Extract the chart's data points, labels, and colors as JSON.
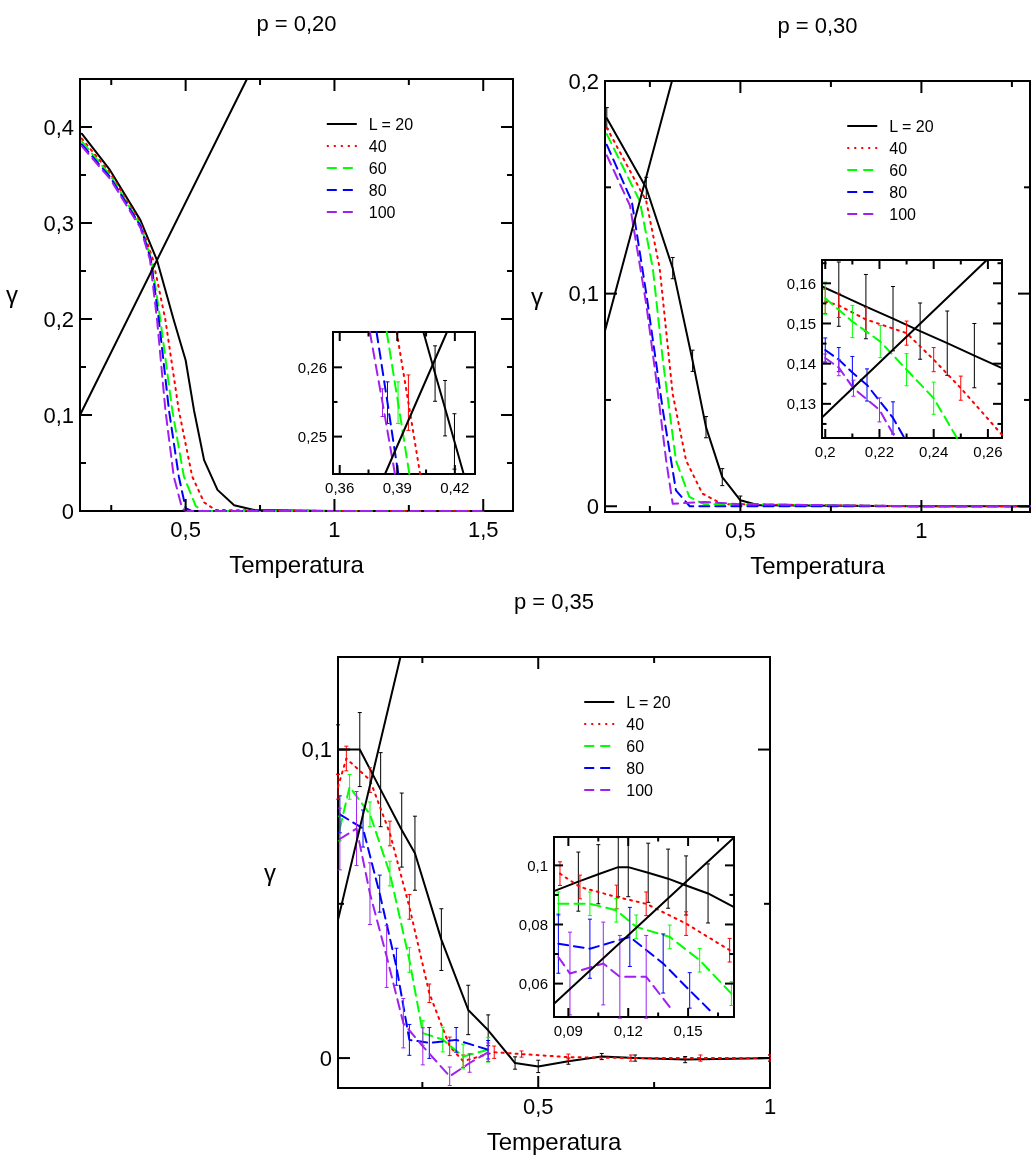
{
  "chart_data": [
    {
      "type": "line",
      "title": "p = 0,20",
      "xlabel": "Temperatura",
      "ylabel": "γ",
      "xlim": [
        0.145,
        1.6
      ],
      "ylim": [
        0,
        0.45
      ],
      "xticks": [
        {
          "value": 0.25,
          "label": null
        },
        {
          "value": 0.5,
          "label": "0,5"
        },
        {
          "value": 0.75,
          "label": null
        },
        {
          "value": 1,
          "label": "1"
        },
        {
          "value": 1.25,
          "label": null
        },
        {
          "value": 1.5,
          "label": "1,5"
        }
      ],
      "yticks": [
        {
          "value": 0,
          "label": "0"
        },
        {
          "value": 0.05,
          "label": null
        },
        {
          "value": 0.1,
          "label": "0,1"
        },
        {
          "value": 0.15,
          "label": null
        },
        {
          "value": 0.2,
          "label": "0,2"
        },
        {
          "value": 0.25,
          "label": null
        },
        {
          "value": 0.3,
          "label": "0,3"
        },
        {
          "value": 0.35,
          "label": null
        },
        {
          "value": 0.4,
          "label": "0,4"
        }
      ],
      "legend": "top right",
      "marker": "none",
      "grid": false,
      "series": [
        {
          "name": "L = 20",
          "color": "#000000",
          "line_style": "solid",
          "x": [
            0.151,
            0.246,
            0.348,
            0.404,
            0.46,
            0.5,
            0.528,
            0.562,
            0.607,
            0.663,
            0.73,
            1.0,
            1.5
          ],
          "values": [
            0.393,
            0.355,
            0.303,
            0.261,
            0.199,
            0.157,
            0.105,
            0.053,
            0.022,
            0.006,
            0.001,
            0,
            0
          ]
        },
        {
          "name": "40",
          "color": "#ff0000",
          "line_style": "dotted",
          "x": [
            0.151,
            0.246,
            0.348,
            0.39,
            0.432,
            0.477,
            0.522,
            0.562,
            0.6,
            1.0,
            1.5
          ],
          "values": [
            0.388,
            0.352,
            0.3,
            0.262,
            0.199,
            0.105,
            0.036,
            0.009,
            0.001,
            0,
            0
          ]
        },
        {
          "name": "60",
          "color": "#00ff00",
          "line_style": "dashed",
          "x": [
            0.151,
            0.246,
            0.348,
            0.385,
            0.415,
            0.455,
            0.494,
            0.534,
            0.56,
            1.0,
            1.5
          ],
          "values": [
            0.385,
            0.35,
            0.298,
            0.262,
            0.199,
            0.105,
            0.036,
            0.005,
            0,
            0,
            0
          ]
        },
        {
          "name": "80",
          "color": "#0000ff",
          "line_style": "dashed",
          "x": [
            0.151,
            0.246,
            0.348,
            0.383,
            0.41,
            0.444,
            0.477,
            0.5,
            0.52,
            1.0,
            1.5
          ],
          "values": [
            0.382,
            0.348,
            0.297,
            0.262,
            0.199,
            0.105,
            0.036,
            0.003,
            0,
            0,
            0
          ]
        },
        {
          "name": "100",
          "color": "#a020f0",
          "line_style": "dashed",
          "x": [
            0.151,
            0.246,
            0.348,
            0.38,
            0.404,
            0.432,
            0.46,
            0.488,
            0.5,
            1.0,
            1.5
          ],
          "values": [
            0.38,
            0.346,
            0.295,
            0.262,
            0.199,
            0.105,
            0.036,
            0.003,
            0,
            0,
            0
          ]
        },
        {
          "type": "line",
          "color": "#000000",
          "line_style": "solid",
          "x": [
            0.145,
            0.706
          ],
          "values": [
            0.1,
            0.45
          ]
        }
      ]
    },
    {
      "type": "line",
      "xlim": [
        0.3565,
        0.4305
      ],
      "ylim": [
        0.2446,
        0.2651
      ],
      "xticks": [
        {
          "value": 0.36,
          "label": "0,36"
        },
        {
          "value": 0.375,
          "label": null
        },
        {
          "value": 0.39,
          "label": "0,39"
        },
        {
          "value": 0.405,
          "label": null
        },
        {
          "value": 0.42,
          "label": "0,42"
        }
      ],
      "yticks": [
        {
          "value": 0.25,
          "label": "0,25"
        },
        {
          "value": 0.255,
          "label": null
        },
        {
          "value": 0.26,
          "label": "0,26"
        }
      ],
      "marker": "none",
      "grid": false,
      "series": [
        {
          "color": "#000000",
          "line_style": "solid",
          "x": [
            0.4036,
            0.4097,
            0.4149,
            0.4198,
            0.4246
          ],
          "values": [
            0.2651,
            0.2591,
            0.2541,
            0.2493,
            0.2446
          ],
          "errors": [
            null,
            0.004,
            0.004,
            0.004,
            null
          ]
        },
        {
          "color": "#ff0000",
          "line_style": "dotted",
          "x": [
            0.3897,
            0.3958,
            0.4019
          ],
          "values": [
            0.2651,
            0.2549,
            0.2446
          ],
          "errors": [
            null,
            0.004,
            null
          ]
        },
        {
          "color": "#00ff00",
          "line_style": "dashed",
          "x": [
            0.3845,
            0.3904,
            0.3963
          ],
          "values": [
            0.2651,
            0.2549,
            0.2446
          ],
          "errors": [
            null,
            0.003,
            null
          ]
        },
        {
          "color": "#0000ff",
          "line_style": "dashed",
          "x": [
            0.3792,
            0.3849,
            0.3905
          ],
          "values": [
            0.2651,
            0.2549,
            0.2446
          ],
          "errors": [
            null,
            0.003,
            null
          ]
        },
        {
          "color": "#a020f0",
          "line_style": "dashed",
          "x": [
            0.3757,
            0.3823,
            0.3888
          ],
          "values": [
            0.2651,
            0.2549,
            0.2446
          ],
          "errors": [
            null,
            0.002,
            null
          ]
        },
        {
          "color": "#000000",
          "line_style": "solid",
          "x": [
            0.3836,
            0.4159
          ],
          "values": [
            0.2446,
            0.2651
          ]
        }
      ]
    },
    {
      "type": "line",
      "title": "p = 0,30",
      "xlabel": "Temperatura",
      "ylabel": "γ",
      "xlim": [
        0.126,
        1.3
      ],
      "ylim": [
        -0.0027,
        0.2
      ],
      "xticks": [
        {
          "value": 0.25,
          "label": null
        },
        {
          "value": 0.5,
          "label": "0,5"
        },
        {
          "value": 0.75,
          "label": null
        },
        {
          "value": 1,
          "label": "1"
        },
        {
          "value": 1.25,
          "label": null
        }
      ],
      "yticks": [
        {
          "value": 0,
          "label": "0"
        },
        {
          "value": 0.05,
          "label": null
        },
        {
          "value": 0.1,
          "label": "0,1"
        },
        {
          "value": 0.15,
          "label": null
        },
        {
          "value": 0.2,
          "label": "0,2"
        }
      ],
      "legend": "top right",
      "marker": "none",
      "grid": false,
      "series": [
        {
          "name": "L = 20",
          "color": "#000000",
          "line_style": "solid",
          "x": [
            0.131,
            0.24,
            0.313,
            0.368,
            0.405,
            0.45,
            0.5,
            0.55,
            1.0,
            1.3
          ],
          "values": [
            0.1825,
            0.1497,
            0.112,
            0.0684,
            0.0372,
            0.0137,
            0.0028,
            0.0005,
            0,
            0
          ],
          "errors": [
            0.005,
            0.005,
            0.005,
            0.005,
            0.005,
            0.004,
            0.002,
            null,
            null,
            null
          ]
        },
        {
          "name": "40",
          "color": "#ff0000",
          "line_style": "dotted",
          "x": [
            0.131,
            0.24,
            0.277,
            0.313,
            0.35,
            0.395,
            0.45,
            1.0,
            1.3
          ],
          "values": [
            0.178,
            0.1435,
            0.112,
            0.0528,
            0.0215,
            0.006,
            0.001,
            0,
            0
          ]
        },
        {
          "name": "60",
          "color": "#00ff00",
          "line_style": "dashed",
          "x": [
            0.131,
            0.222,
            0.258,
            0.286,
            0.322,
            0.359,
            0.4,
            1.0,
            1.3
          ],
          "values": [
            0.175,
            0.1435,
            0.112,
            0.0684,
            0.0215,
            0.0044,
            0.001,
            0,
            0
          ]
        },
        {
          "name": "80",
          "color": "#0000ff",
          "line_style": "dashed",
          "x": [
            0.131,
            0.2,
            0.24,
            0.286,
            0.322,
            0.36,
            1.0,
            1.3
          ],
          "values": [
            0.17,
            0.1434,
            0.1,
            0.045,
            0.0075,
            0,
            0,
            0
          ]
        },
        {
          "name": "100",
          "color": "#a020f0",
          "line_style": "dashed",
          "x": [
            0.131,
            0.195,
            0.24,
            0.268,
            0.295,
            0.313,
            0.4,
            0.5,
            1.0,
            1.3
          ],
          "values": [
            0.165,
            0.1414,
            0.095,
            0.059,
            0.0215,
            0.0012,
            0.002,
            0.001,
            0,
            0
          ]
        },
        {
          "type": "line",
          "color": "#000000",
          "line_style": "solid",
          "x": [
            0.126,
            0.311
          ],
          "values": [
            0.0825,
            0.2
          ]
        }
      ]
    },
    {
      "type": "line",
      "xlim": [
        0.1988,
        0.2652
      ],
      "ylim": [
        0.1215,
        0.1658
      ],
      "xticks": [
        {
          "value": 0.2,
          "label": "0,2"
        },
        {
          "value": 0.21,
          "label": null
        },
        {
          "value": 0.22,
          "label": "0,22"
        },
        {
          "value": 0.23,
          "label": null
        },
        {
          "value": 0.24,
          "label": "0,24"
        },
        {
          "value": 0.25,
          "label": null
        },
        {
          "value": 0.26,
          "label": "0,26"
        }
      ],
      "yticks": [
        {
          "value": 0.125,
          "label": null
        },
        {
          "value": 0.13,
          "label": "0,13"
        },
        {
          "value": 0.135,
          "label": null
        },
        {
          "value": 0.14,
          "label": "0,14"
        },
        {
          "value": 0.145,
          "label": null
        },
        {
          "value": 0.15,
          "label": "0,15"
        },
        {
          "value": 0.155,
          "label": null
        },
        {
          "value": 0.16,
          "label": "0,16"
        },
        {
          "value": 0.165,
          "label": null
        }
      ],
      "marker": "none",
      "grid": false,
      "series": [
        {
          "color": "#000000",
          "line_style": "solid",
          "x": [
            0.1988,
            0.205,
            0.215,
            0.225,
            0.235,
            0.245,
            0.255,
            0.2652
          ],
          "values": [
            0.1592,
            0.1573,
            0.1542,
            0.1512,
            0.1481,
            0.1451,
            0.142,
            0.1389
          ],
          "errors": [
            null,
            0.008,
            0.008,
            0.008,
            0.007,
            0.008,
            0.008,
            null
          ]
        },
        {
          "color": "#ff0000",
          "line_style": "dotted",
          "x": [
            0.2,
            0.205,
            0.215,
            0.23,
            0.24,
            0.25,
            0.2652
          ],
          "values": [
            0.1555,
            0.1545,
            0.151,
            0.1476,
            0.141,
            0.1339,
            0.1223
          ],
          "errors": [
            0.003,
            0.003,
            0.003,
            0.003,
            0.003,
            0.003,
            null
          ]
        },
        {
          "color": "#00ff00",
          "line_style": "dashed",
          "x": [
            0.2,
            0.21,
            0.2203,
            0.23,
            0.24,
            0.2486
          ],
          "values": [
            0.1563,
            0.1505,
            0.1455,
            0.1385,
            0.1314,
            0.1215
          ],
          "errors": [
            0.004,
            0.004,
            0.004,
            0.004,
            0.004,
            null
          ]
        },
        {
          "color": "#0000ff",
          "line_style": "dashed",
          "x": [
            0.2,
            0.205,
            0.21,
            0.2154,
            0.225,
            0.2289
          ],
          "values": [
            0.1434,
            0.141,
            0.1378,
            0.1347,
            0.1265,
            0.1219
          ],
          "errors": [
            0.003,
            0.003,
            0.004,
            0.004,
            0.004,
            null
          ]
        },
        {
          "color": "#a020f0",
          "line_style": "dashed",
          "x": [
            0.2,
            0.205,
            0.2104,
            0.22,
            0.2252
          ],
          "values": [
            0.1414,
            0.139,
            0.1339,
            0.1285,
            0.1223
          ],
          "errors": [
            0.001,
            0.002,
            0.002,
            0.003,
            null
          ]
        },
        {
          "color": "#000000",
          "line_style": "solid",
          "x": [
            0.1988,
            0.2596
          ],
          "values": [
            0.1266,
            0.1658
          ]
        }
      ]
    },
    {
      "type": "line",
      "title": "p = 0,35",
      "xlabel": "Temperatura",
      "ylabel": "γ",
      "xlim": [
        0.068,
        1
      ],
      "ylim": [
        -0.0097,
        0.13
      ],
      "xticks": [
        {
          "value": 0.25,
          "label": null
        },
        {
          "value": 0.5,
          "label": "0,5"
        },
        {
          "value": 0.75,
          "label": null
        },
        {
          "value": 1,
          "label": "1"
        }
      ],
      "yticks": [
        {
          "value": 0,
          "label": "0"
        },
        {
          "value": 0.05,
          "label": null
        },
        {
          "value": 0.1,
          "label": "0,1"
        }
      ],
      "legend": "top right",
      "marker": "none",
      "grid": false,
      "series": [
        {
          "name": "L = 20",
          "color": "#000000",
          "line_style": "solid",
          "x": [
            0.068,
            0.115,
            0.16,
            0.2055,
            0.234,
            0.291,
            0.349,
            0.392,
            0.45,
            0.5,
            0.565,
            0.637,
            0.709,
            0.817,
            1.0
          ],
          "values": [
            0.1,
            0.1,
            0.087,
            0.0739,
            0.0664,
            0.0384,
            0.0156,
            0.009,
            -0.0016,
            -0.0027,
            -0.001,
            0.0005,
            0,
            -0.0005,
            0
          ],
          "errors": [
            0.008,
            0.012,
            0.012,
            0.012,
            0.012,
            0.01,
            0.008,
            0.005,
            0.002,
            0.002,
            0.001,
            0.001,
            0.001,
            0.001,
            0.001
          ]
        },
        {
          "name": "40",
          "color": "#ff0000",
          "line_style": "dotted",
          "x": [
            0.068,
            0.086,
            0.137,
            0.18,
            0.222,
            0.265,
            0.309,
            0.338,
            0.405,
            0.464,
            0.565,
            0.7,
            0.85,
            1.0
          ],
          "values": [
            0.0879,
            0.0971,
            0.0901,
            0.0728,
            0.049,
            0.021,
            0.0038,
            -0.001,
            0.0019,
            0.0013,
            0.0003,
            0,
            0,
            0
          ],
          "errors": [
            0.004,
            0.004,
            0.004,
            0.004,
            0.004,
            0.003,
            0.003,
            0.002,
            0.002,
            0.001,
            0.001,
            0.001,
            0.001,
            0.001
          ]
        },
        {
          "name": "60",
          "color": "#00ff00",
          "line_style": "dashed",
          "x": [
            0.072,
            0.093,
            0.137,
            0.18,
            0.222,
            0.251,
            0.294,
            0.338,
            0.392
          ],
          "values": [
            0.0744,
            0.0879,
            0.079,
            0.0598,
            0.0318,
            0.0081,
            0.006,
            0.0005,
            0.0027
          ],
          "errors": [
            0.004,
            0.004,
            0.004,
            0.004,
            0.004,
            0.004,
            0.004,
            0.004,
            0.004
          ]
        },
        {
          "name": "80",
          "color": "#0000ff",
          "line_style": "dashed",
          "x": [
            0.072,
            0.122,
            0.158,
            0.194,
            0.222,
            0.265,
            0.323,
            0.392
          ],
          "values": [
            0.079,
            0.0744,
            0.0533,
            0.0296,
            0.0059,
            0.0049,
            0.0059,
            0.0027
          ],
          "errors": [
            0.006,
            0.006,
            0.006,
            0.006,
            0.005,
            0.005,
            0.004,
            0.003
          ]
        },
        {
          "name": "100",
          "color": "#a020f0",
          "line_style": "dashed",
          "x": [
            0.072,
            0.108,
            0.137,
            0.173,
            0.209,
            0.251,
            0.309,
            0.352,
            0.392
          ],
          "values": [
            0.071,
            0.0744,
            0.0533,
            0.0329,
            0.0113,
            0.0038,
            -0.0059,
            -0.0016,
            0.0019
          ],
          "errors": [
            0.01,
            0.012,
            0.01,
            0.01,
            0.008,
            0.006,
            0.003,
            0.003,
            0.003
          ]
        },
        {
          "type": "line",
          "color": "#000000",
          "line_style": "solid",
          "x": [
            0.068,
            0.2027
          ],
          "values": [
            0.0448,
            0.13
          ]
        }
      ]
    },
    {
      "type": "line",
      "xlim": [
        0.0828,
        0.173
      ],
      "ylim": [
        0.0487,
        0.1096
      ],
      "xticks": [
        {
          "value": 0.09,
          "label": "0,09"
        },
        {
          "value": 0.105,
          "label": null
        },
        {
          "value": 0.12,
          "label": "0,12"
        },
        {
          "value": 0.135,
          "label": null
        },
        {
          "value": 0.15,
          "label": "0,15"
        },
        {
          "value": 0.165,
          "label": null
        }
      ],
      "yticks": [
        {
          "value": 0.06,
          "label": "0,06"
        },
        {
          "value": 0.07,
          "label": null
        },
        {
          "value": 0.08,
          "label": "0,08"
        },
        {
          "value": 0.09,
          "label": null
        },
        {
          "value": 0.1,
          "label": "0,1"
        }
      ],
      "marker": "none",
      "grid": false,
      "series": [
        {
          "color": "#000000",
          "line_style": "solid",
          "x": [
            0.0828,
            0.095,
            0.105,
            0.115,
            0.12,
            0.13,
            0.14,
            0.149,
            0.16,
            0.173
          ],
          "values": [
            0.0913,
            0.0945,
            0.097,
            0.0994,
            0.0994,
            0.0975,
            0.0955,
            0.0932,
            0.0905,
            0.0859
          ],
          "errors": [
            null,
            0.01,
            0.01,
            0.01,
            0.01,
            0.01,
            0.01,
            0.01,
            0.01,
            null
          ]
        },
        {
          "color": "#ff0000",
          "line_style": "dotted",
          "x": [
            0.0858,
            0.0958,
            0.1142,
            0.129,
            0.149,
            0.1708
          ],
          "values": [
            0.0972,
            0.0927,
            0.0893,
            0.087,
            0.0803,
            0.0713
          ],
          "errors": [
            0.004,
            0.004,
            0.004,
            0.004,
            0.004,
            0.004
          ]
        },
        {
          "color": "#00ff00",
          "line_style": "dashed",
          "x": [
            0.085,
            0.1008,
            0.114,
            0.124,
            0.1408,
            0.1558,
            0.1717
          ],
          "values": [
            0.087,
            0.087,
            0.0848,
            0.0792,
            0.0758,
            0.0679,
            0.0566
          ],
          "errors": [
            0.004,
            0.004,
            0.004,
            0.004,
            0.004,
            0.004,
            0.004
          ]
        },
        {
          "color": "#0000ff",
          "line_style": "dashed",
          "x": [
            0.085,
            0.1008,
            0.1208,
            0.1375,
            0.1508,
            0.1608
          ],
          "values": [
            0.0735,
            0.0718,
            0.0758,
            0.0668,
            0.0577,
            0.051
          ],
          "errors": [
            0.01,
            0.01,
            0.01,
            0.01,
            0.006,
            null
          ]
        },
        {
          "color": "#a020f0",
          "line_style": "dashed",
          "x": [
            0.085,
            0.0908,
            0.1075,
            0.1158,
            0.129,
            0.1408
          ],
          "values": [
            0.069,
            0.0634,
            0.0668,
            0.0623,
            0.0623,
            0.0521
          ],
          "errors": [
            null,
            0.014,
            0.014,
            0.014,
            0.014,
            null
          ]
        },
        {
          "color": "#000000",
          "line_style": "solid",
          "x": [
            0.0828,
            0.173
          ],
          "values": [
            0.0532,
            0.1094
          ]
        }
      ]
    }
  ]
}
